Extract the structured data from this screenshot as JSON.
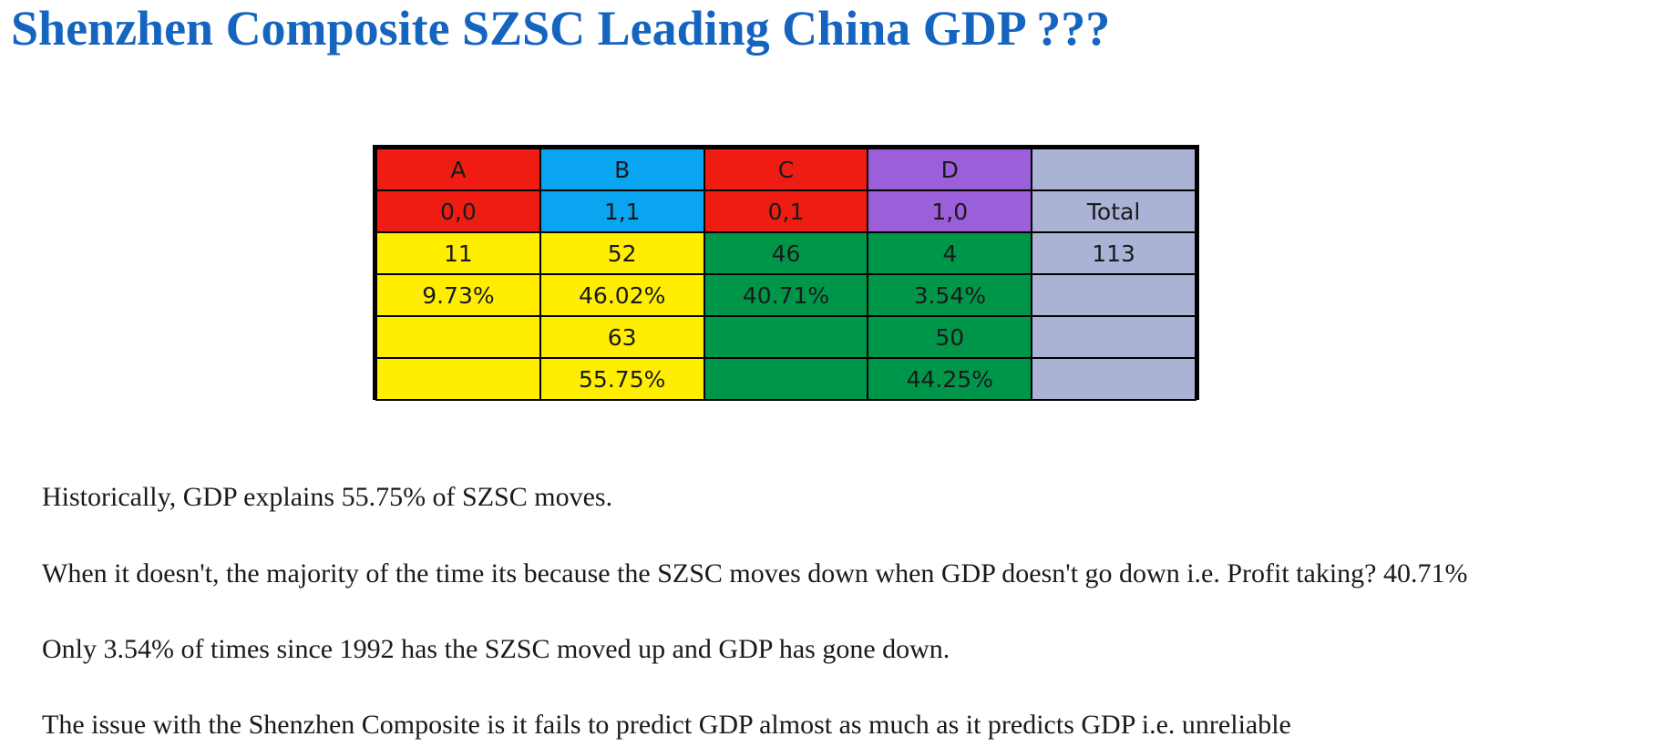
{
  "title": "Shenzhen Composite SZSC Leading China GDP ???",
  "table": {
    "columns": [
      "A",
      "B",
      "C",
      "D",
      ""
    ],
    "codes": [
      "0,0",
      "1,1",
      "0,1",
      "1,0",
      "Total"
    ],
    "counts": [
      "11",
      "52",
      "46",
      "4",
      "113"
    ],
    "percents": [
      "9.73%",
      "46.02%",
      "40.71%",
      "3.54%",
      ""
    ],
    "group_counts": [
      "",
      "63",
      "",
      "50",
      ""
    ],
    "group_percents": [
      "",
      "55.75%",
      "",
      "44.25%",
      ""
    ]
  },
  "colors": {
    "title": "#1565c0",
    "red": "#ee1c12",
    "blue": "#09a5f0",
    "purple": "#9b5fd9",
    "gray": "#aab3d6",
    "yellow": "#ffee00",
    "green": "#00964a"
  },
  "paragraphs": [
    "Historically, GDP explains 55.75% of SZSC moves.",
    "When it doesn't, the majority of the time its because the SZSC moves down when GDP doesn't go down i.e. Profit taking? 40.71%",
    "Only 3.54% of times since 1992 has the SZSC moved up and GDP has gone down.",
    "The issue with the Shenzhen Composite is it fails to predict GDP almost as much as it predicts GDP i.e. unreliable"
  ]
}
